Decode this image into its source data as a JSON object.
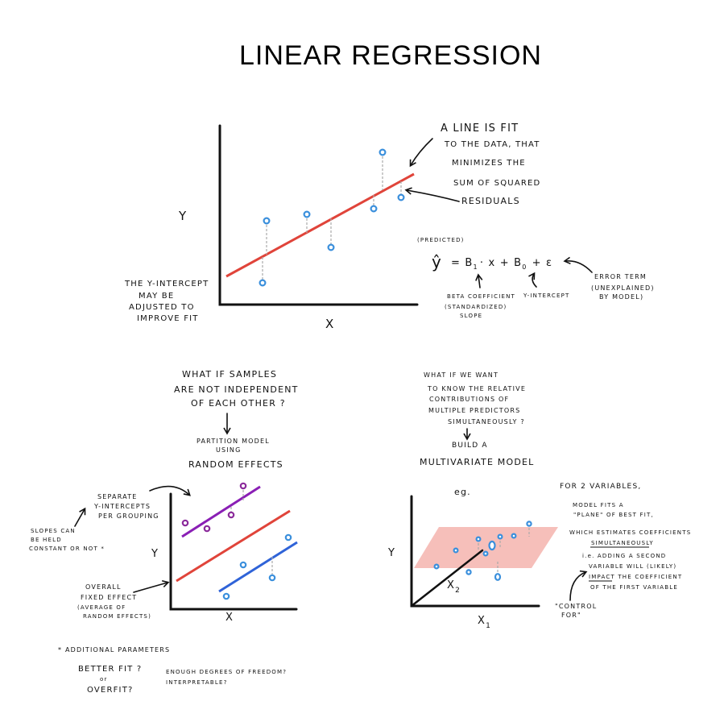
{
  "title": "LINEAR REGRESSION",
  "panel1": {
    "y_label": "Y",
    "x_label": "X",
    "note_line_fit": [
      "A   LINE   IS   FIT",
      "TO THE DATA, THAT",
      "MINIMIZES THE",
      "SUM OF SQUARED",
      "RESIDUALS"
    ],
    "note_intercept": [
      "THE Y-INTERCEPT",
      "MAY BE",
      "ADJUSTED TO",
      "IMPROVE FIT"
    ]
  },
  "equation": {
    "predicted": "(PREDICTED)",
    "yhat": "ŷ",
    "eq": "=  B",
    "sub1": "1",
    "times_x": "· x  +  B",
    "sub0": "0",
    "plus_eps": "+  ε",
    "beta_label": [
      "BETA COEFFICIENT",
      "(STANDARDIZED)",
      "SLOPE"
    ],
    "intercept_label": "Y-INTERCEPT",
    "error_label": [
      "ERROR TERM",
      "(UNEXPLAINED)",
      "BY MODEL)"
    ]
  },
  "panel2": {
    "question": [
      "WHAT IF SAMPLES",
      "ARE NOT INDEPENDENT",
      "OF EACH OTHER ?"
    ],
    "answer": [
      "PARTITION MODEL",
      "USING"
    ],
    "answer_big": "RANDOM EFFECTS",
    "note_separate": [
      "SEPARATE",
      "Y-INTERCEPTS",
      "PER GROUPING"
    ],
    "note_slopes": [
      "SLOPES CAN",
      "BE HELD",
      "CONSTANT OR NOT *"
    ],
    "note_overall": [
      "OVERALL",
      "FIXED EFFECT",
      "(AVERAGE OF",
      "RANDOM EFFECTS)"
    ],
    "y_label": "Y",
    "x_label": "X",
    "footnote_head": "* ADDITIONAL PARAMETERS",
    "footnote_left": [
      "BETTER FIT ?",
      "or",
      "OVERFIT?"
    ],
    "footnote_right": [
      "ENOUGH DEGREES OF FREEDOM?",
      "INTERPRETABLE?"
    ]
  },
  "panel3": {
    "question": [
      "WHAT IF WE WANT",
      "TO KNOW THE RELATIVE",
      "CONTRIBUTIONS OF",
      "MULTIPLE PREDICTORS",
      "SIMULTANEOUSLY ?"
    ],
    "answer": "BUILD A",
    "answer_big": "MULTIVARIATE MODEL",
    "eg": "eg.",
    "y_label": "Y",
    "x2_label": "X",
    "x2_sub": "2",
    "x1_label": "X",
    "x1_sub": "1",
    "note_right": [
      "FOR 2 VARIABLES,",
      "MODEL FITS A",
      "\"PLANE\" OF BEST FIT,",
      "WHICH ESTIMATES COEFFICIENTS",
      "SIMULTANEOUSLY",
      "i.e. ADDING A SECOND",
      "VARIABLE WILL (LIKELY)",
      "IMPACT THE COEFFICIENT",
      "OF THE FIRST VARIABLE"
    ],
    "control_for": [
      "\"CONTROL",
      "FOR\""
    ]
  },
  "colors": {
    "fit_line": "#e0443a",
    "points": "#3a8fdc",
    "group_purple": "#8a1fb5",
    "group_blue": "#2f63d8",
    "plane": "#f4b4ae",
    "residual": "#aaaaaa"
  }
}
